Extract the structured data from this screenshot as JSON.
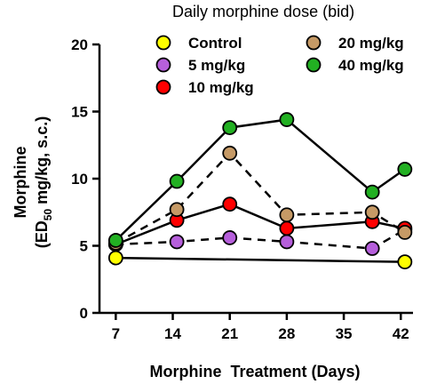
{
  "chart_data": {
    "type": "line",
    "title": "",
    "legend_title": "Daily morphine dose (bid)",
    "xlabel": "Morphine  Treatment (Days)",
    "ylabel_line1": "Morphine",
    "ylabel_line2_prefix": "(ED",
    "ylabel_line2_sub": "50",
    "ylabel_line2_suffix": " mg/kg, s.c.)",
    "xlim": [
      5,
      43.5
    ],
    "ylim": [
      0,
      20
    ],
    "xticks": [
      7,
      14,
      21,
      28,
      35,
      42
    ],
    "yticks": [
      0,
      5,
      10,
      15,
      20
    ],
    "legend_placement": "top",
    "grid": false,
    "series": [
      {
        "name": "Control",
        "color": "#ffff00",
        "dash": "solid",
        "x": [
          7,
          42.5
        ],
        "y": [
          4.1,
          3.8
        ]
      },
      {
        "name": "5 mg/kg",
        "color": "#b65fdb",
        "dash": "dashed",
        "x": [
          7,
          14.5,
          21,
          28,
          38.5,
          42.5
        ],
        "y": [
          5.1,
          5.3,
          5.6,
          5.3,
          4.8,
          6.2
        ]
      },
      {
        "name": "10 mg/kg",
        "color": "#ff0000",
        "dash": "solid",
        "x": [
          7,
          14.5,
          21,
          28,
          38.5,
          42.5
        ],
        "y": [
          5.1,
          6.9,
          8.1,
          6.3,
          6.8,
          6.3
        ]
      },
      {
        "name": "20 mg/kg",
        "color": "#c69a66",
        "dash": "dashed",
        "x": [
          7,
          14.5,
          21,
          28,
          38.5,
          42.5
        ],
        "y": [
          5.2,
          7.7,
          11.9,
          7.3,
          7.5,
          6.0
        ]
      },
      {
        "name": "40 mg/kg",
        "color": "#22b022",
        "dash": "solid",
        "x": [
          7,
          14.5,
          21,
          28,
          38.5,
          42.5
        ],
        "y": [
          5.4,
          9.8,
          13.8,
          14.4,
          9.0,
          10.7
        ]
      }
    ]
  }
}
